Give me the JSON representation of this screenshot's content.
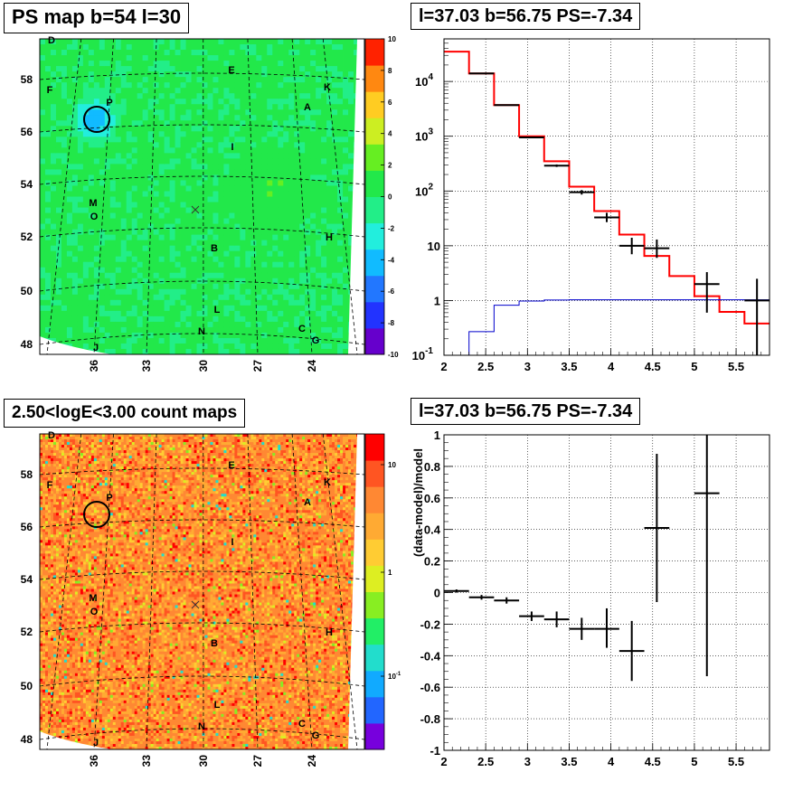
{
  "panels": {
    "ps_map": {
      "title": "PS map b=54 l=30"
    },
    "spectrum": {
      "title": "l=37.03 b=56.75 PS=-7.34"
    },
    "count_map": {
      "title": "2.50<logE<3.00 count maps"
    },
    "residual": {
      "title": "l=37.03 b=56.75 PS=-7.34"
    }
  },
  "colors": {
    "ps_map_background": "#22e84a",
    "count_map_background": "#f2a23a",
    "model_line": "#ff0000",
    "background_line": "#0000cc",
    "data_points": "#000000",
    "circle": "#000000"
  },
  "sky_map": {
    "lat_ticks": [
      "58",
      "56",
      "54",
      "52",
      "50",
      "48"
    ],
    "lon_ticks": [
      "36",
      "33",
      "30",
      "27",
      "24"
    ],
    "source_labels": [
      "D",
      "F",
      "P",
      "E",
      "K",
      "A",
      "I",
      "M",
      "O",
      "B",
      "H",
      "L",
      "N",
      "C",
      "G",
      "J"
    ]
  },
  "ps_colorbar": {
    "ticks": [
      "10",
      "8",
      "6",
      "4",
      "2",
      "0",
      "-2",
      "-4",
      "-6",
      "-8",
      "-10"
    ],
    "range": [
      -10,
      10
    ]
  },
  "count_colorbar": {
    "ticks": [
      "10",
      "1",
      "10-1"
    ]
  },
  "chart_data": [
    {
      "type": "line",
      "title": "l=37.03 b=56.75 PS=-7.34",
      "xlabel": "",
      "ylabel": "",
      "xlim": [
        2,
        5.9
      ],
      "ylim": [
        0.1,
        60000
      ],
      "yscale": "log",
      "grid": true,
      "x_ticks": [
        "2",
        "2.5",
        "3",
        "3.5",
        "4",
        "4.5",
        "5",
        "5.5"
      ],
      "y_ticks": [
        "10^4",
        "10^3",
        "10^2",
        "10",
        "1",
        "10^-1"
      ],
      "model_step": {
        "edges": [
          2.0,
          2.3,
          2.6,
          2.9,
          3.2,
          3.5,
          3.8,
          4.1,
          4.4,
          4.7,
          5.0,
          5.3,
          5.6,
          5.9
        ],
        "values": [
          35000,
          14000,
          3700,
          1000,
          350,
          120,
          43,
          16,
          6.5,
          2.8,
          1.2,
          0.62,
          0.38
        ]
      },
      "background_step": {
        "edges": [
          2.3,
          2.6,
          2.9,
          3.2,
          3.5,
          5.9
        ],
        "values": [
          0.27,
          0.82,
          0.98,
          1.02,
          1.03
        ]
      },
      "data_points": [
        {
          "x": 2.45,
          "y": 14000,
          "xerr": 0.15,
          "ylo": 14000,
          "yhi": 14000
        },
        {
          "x": 2.75,
          "y": 3700,
          "xerr": 0.15,
          "ylo": 3700,
          "yhi": 3700
        },
        {
          "x": 3.05,
          "y": 950,
          "xerr": 0.15,
          "ylo": 950,
          "yhi": 950
        },
        {
          "x": 3.35,
          "y": 290,
          "xerr": 0.15,
          "ylo": 275,
          "yhi": 305
        },
        {
          "x": 3.65,
          "y": 95,
          "xerr": 0.15,
          "ylo": 86,
          "yhi": 104
        },
        {
          "x": 3.95,
          "y": 33,
          "xerr": 0.15,
          "ylo": 27,
          "yhi": 40
        },
        {
          "x": 4.25,
          "y": 10,
          "xerr": 0.15,
          "ylo": 7,
          "yhi": 14
        },
        {
          "x": 4.55,
          "y": 9,
          "xerr": 0.15,
          "ylo": 6,
          "yhi": 13
        },
        {
          "x": 5.15,
          "y": 2,
          "xerr": 0.15,
          "ylo": 0.6,
          "yhi": 3.3
        },
        {
          "x": 5.75,
          "y": 1,
          "xerr": 0.15,
          "ylo": 0.1,
          "yhi": 2.5
        }
      ]
    },
    {
      "type": "scatter",
      "title": "l=37.03 b=56.75 PS=-7.34",
      "xlabel": "",
      "ylabel": "(data-model)/model",
      "xlim": [
        2,
        5.9
      ],
      "ylim": [
        -1,
        1
      ],
      "grid": true,
      "x_ticks": [
        "2",
        "2.5",
        "3",
        "3.5",
        "4",
        "4.5",
        "5",
        "5.5"
      ],
      "y_ticks": [
        "1",
        "0.8",
        "0.6",
        "0.4",
        "0.2",
        "0",
        "-0.2",
        "-0.4",
        "-0.6",
        "-0.8",
        "-1"
      ],
      "points": [
        {
          "x": 2.15,
          "y": 0.01,
          "xerr": 0.15,
          "ylo": 0.0,
          "yhi": 0.02
        },
        {
          "x": 2.45,
          "y": -0.03,
          "xerr": 0.15,
          "ylo": -0.045,
          "yhi": -0.015
        },
        {
          "x": 2.75,
          "y": -0.05,
          "xerr": 0.15,
          "ylo": -0.07,
          "yhi": -0.03
        },
        {
          "x": 3.05,
          "y": -0.15,
          "xerr": 0.15,
          "ylo": -0.18,
          "yhi": -0.12
        },
        {
          "x": 3.35,
          "y": -0.17,
          "xerr": 0.15,
          "ylo": -0.22,
          "yhi": -0.12
        },
        {
          "x": 3.65,
          "y": -0.23,
          "xerr": 0.15,
          "ylo": -0.3,
          "yhi": -0.16
        },
        {
          "x": 3.95,
          "y": -0.23,
          "xerr": 0.15,
          "ylo": -0.35,
          "yhi": -0.1
        },
        {
          "x": 4.25,
          "y": -0.37,
          "xerr": 0.15,
          "ylo": -0.56,
          "yhi": -0.18
        },
        {
          "x": 4.55,
          "y": 0.41,
          "xerr": 0.15,
          "ylo": -0.06,
          "yhi": 0.88
        },
        {
          "x": 5.15,
          "y": 0.63,
          "xerr": 0.15,
          "ylo": -0.53,
          "yhi": 1.0
        }
      ]
    }
  ]
}
